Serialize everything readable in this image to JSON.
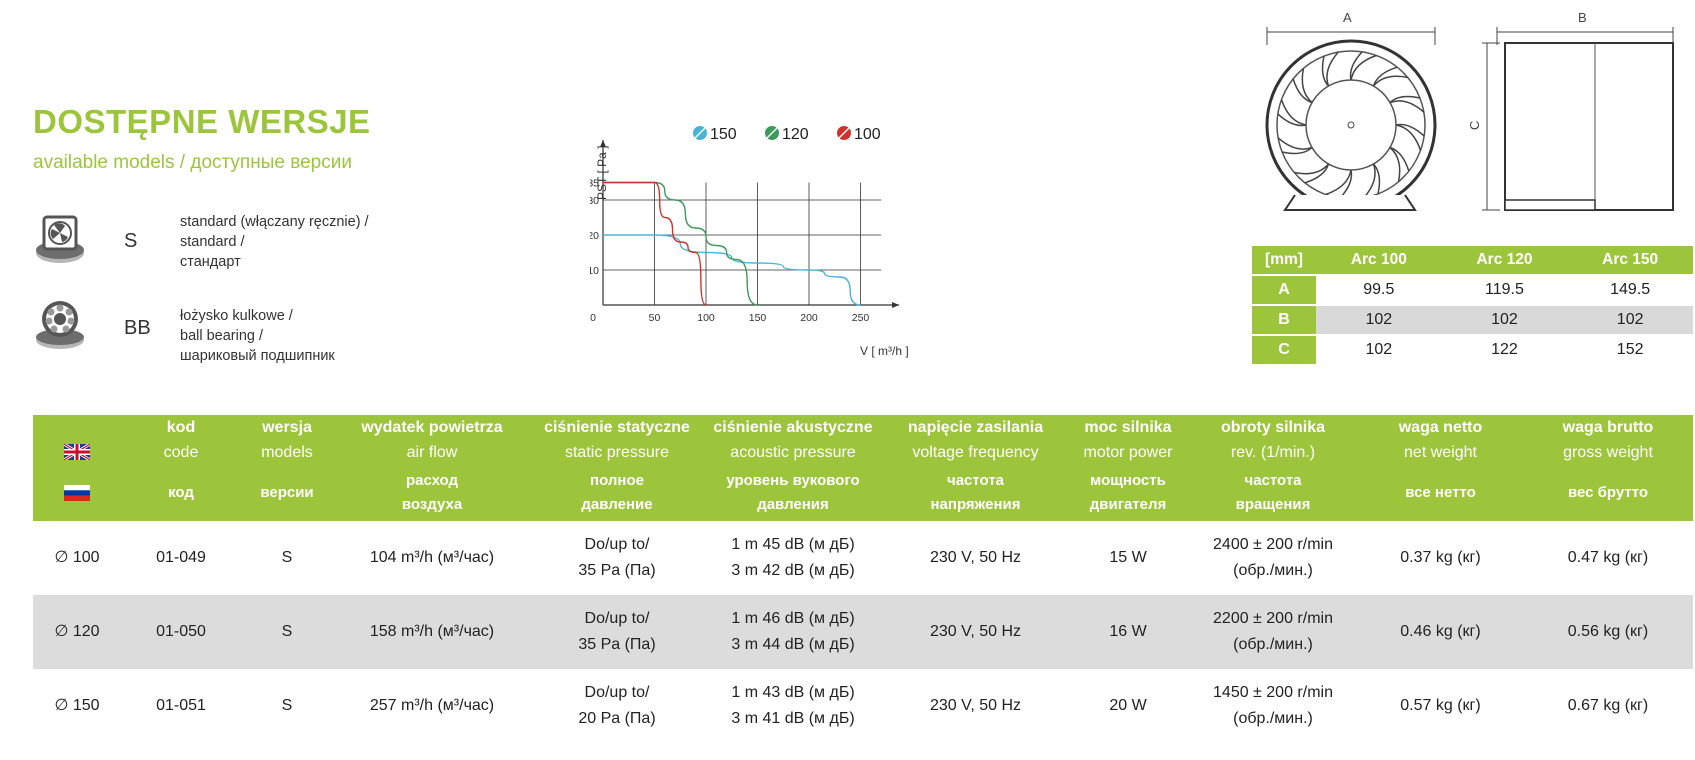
{
  "header": {
    "title": "DOSTĘPNE WERSJE",
    "subtitle": "available models / доступные версии"
  },
  "versions": [
    {
      "code": "S",
      "icon": "fan-icon",
      "desc": [
        "standard (włączany ręcznie) /",
        "standard /",
        "стандарт"
      ]
    },
    {
      "code": "BB",
      "icon": "ball-bearing-icon",
      "desc": [
        "łożysko kulkowe /",
        "ball bearing /",
        "шариковый подшипник"
      ]
    }
  ],
  "chart_data": {
    "type": "line",
    "legend": [
      {
        "name": "150",
        "color": "#4bb3d6"
      },
      {
        "name": "120",
        "color": "#3d9a5b"
      },
      {
        "name": "100",
        "color": "#d0312d"
      }
    ],
    "legend_placement": "top",
    "xlabel": "V [ m³/h ]",
    "ylabel": "PST [ Pa ]",
    "xticks": [
      0,
      50,
      100,
      150,
      200,
      250
    ],
    "yticks": [
      10,
      20,
      30,
      35
    ],
    "xlim": [
      0,
      270
    ],
    "ylim": [
      0,
      40
    ],
    "grid": true,
    "series": [
      {
        "name": "150",
        "color": "#4bb3d6",
        "points": [
          [
            0,
            20
          ],
          [
            50,
            20
          ],
          [
            100,
            15
          ],
          [
            150,
            12
          ],
          [
            200,
            10
          ],
          [
            230,
            8
          ],
          [
            250,
            0
          ]
        ]
      },
      {
        "name": "120",
        "color": "#3d9a5b",
        "points": [
          [
            0,
            35
          ],
          [
            50,
            35
          ],
          [
            70,
            30
          ],
          [
            90,
            22
          ],
          [
            110,
            17
          ],
          [
            130,
            13
          ],
          [
            150,
            0
          ]
        ]
      },
      {
        "name": "100",
        "color": "#d0312d",
        "points": [
          [
            0,
            35
          ],
          [
            50,
            35
          ],
          [
            60,
            25
          ],
          [
            75,
            18
          ],
          [
            90,
            15
          ],
          [
            100,
            0
          ]
        ]
      }
    ]
  },
  "dimensions": {
    "labels": {
      "a": "A",
      "b": "B",
      "c": "C"
    },
    "headers": [
      "[mm]",
      "Arc 100",
      "Arc 120",
      "Arc 150"
    ],
    "rows": [
      {
        "label": "A",
        "values": [
          "99.5",
          "119.5",
          "149.5"
        ]
      },
      {
        "label": "B",
        "values": [
          "102",
          "102",
          "102"
        ]
      },
      {
        "label": "C",
        "values": [
          "102",
          "122",
          "152"
        ]
      }
    ]
  },
  "spec": {
    "headers_pl": [
      "kod",
      "wersja",
      "wydatek powietrza",
      "ciśnienie statyczne",
      "ciśnienie akustyczne",
      "napięcie zasilania",
      "moc silnika",
      "obroty silnika",
      "waga netto",
      "waga brutto"
    ],
    "headers_en": [
      "code",
      "models",
      "air flow",
      "static pressure",
      "acoustic pressure",
      "voltage frequency",
      "motor power",
      "rev. (1/min.)",
      "net weight",
      "gross weight"
    ],
    "headers_ru": [
      [
        "код"
      ],
      [
        "версии"
      ],
      [
        "расход",
        "воздуха"
      ],
      [
        "полное",
        "давление"
      ],
      [
        "уровень вукового",
        "давления"
      ],
      [
        "частота",
        "напряжения"
      ],
      [
        "мощность",
        "двигателя"
      ],
      [
        "частота",
        "вращения"
      ],
      [
        "все нетто"
      ],
      [
        "вес брутто"
      ]
    ],
    "rows": [
      {
        "size": "∅ 100",
        "kod": "01-049",
        "wersja": "S",
        "flow": "104 m³/h (м³/час)",
        "pressure": [
          "Do/up to/",
          "35 Pa (Па)"
        ],
        "acoustic": [
          "1 m 45 dB (м дБ)",
          "3 m 42 dB (м дБ)"
        ],
        "voltage": "230 V, 50 Hz",
        "power": "15 W",
        "rev": [
          "2400 ± 200 r/min",
          "(обр./мин.)"
        ],
        "net": "0.37 kg (кг)",
        "gross": "0.47 kg (кг)"
      },
      {
        "size": "∅ 120",
        "kod": "01-050",
        "wersja": "S",
        "flow": "158 m³/h (м³/час)",
        "pressure": [
          "Do/up to/",
          "35 Pa (Па)"
        ],
        "acoustic": [
          "1 m 46 dB (м дБ)",
          "3 m 44 dB (м дБ)"
        ],
        "voltage": "230 V, 50 Hz",
        "power": "16 W",
        "rev": [
          "2200 ± 200 r/min",
          "(обр./мин.)"
        ],
        "net": "0.46 kg (кг)",
        "gross": "0.56 kg (кг)"
      },
      {
        "size": "∅ 150",
        "kod": "01-051",
        "wersja": "S",
        "flow": "257 m³/h (м³/час)",
        "pressure": [
          "Do/up to/",
          "20 Pa (Па)"
        ],
        "acoustic": [
          "1 m 43 dB (м дБ)",
          "3 m 41 dB (м дБ)"
        ],
        "voltage": "230 V, 50 Hz",
        "power": "20 W",
        "rev": [
          "1450 ± 200 r/min",
          "(обр./мин.)"
        ],
        "net": "0.57 kg (кг)",
        "gross": "0.67 kg (кг)"
      }
    ]
  }
}
